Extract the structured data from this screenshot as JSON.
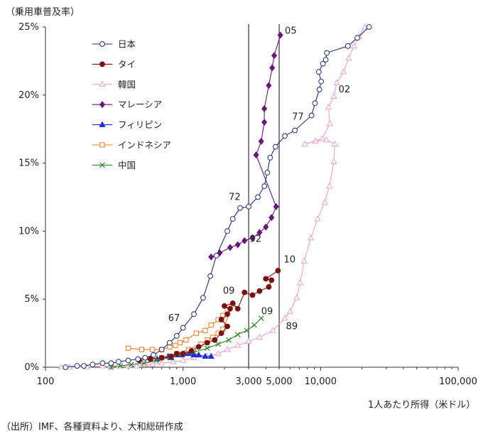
{
  "source_note": "（出所）IMF、各種資料より、大和総研作成",
  "chart_data": {
    "type": "line",
    "title": "",
    "xlabel": "1人あたり所得（米ドル）",
    "ylabel": "（乗用車普及率）",
    "x_scale": "log",
    "xlim": [
      100,
      100000
    ],
    "ylim": [
      0,
      25
    ],
    "x_ticks": [
      {
        "value": 100,
        "label": "100"
      },
      {
        "value": 1000,
        "label": "1,000"
      },
      {
        "value": 3000,
        "label": "3,000"
      },
      {
        "value": 5000,
        "label": "5,000"
      },
      {
        "value": 10000,
        "label": "10,000"
      },
      {
        "value": 100000,
        "label": "100,000"
      }
    ],
    "y_ticks": [
      {
        "value": 0,
        "label": "0%"
      },
      {
        "value": 5,
        "label": "5%"
      },
      {
        "value": 10,
        "label": "10%"
      },
      {
        "value": 15,
        "label": "15%"
      },
      {
        "value": 20,
        "label": "20%"
      },
      {
        "value": 25,
        "label": "25%"
      }
    ],
    "reference_lines_x": [
      3000,
      5000
    ],
    "legend_position": "top-left",
    "series": [
      {
        "name": "日本",
        "color": "#1f2d7a",
        "marker": "circle-open",
        "points": [
          [
            140,
            0
          ],
          [
            170,
            0.1
          ],
          [
            190,
            0.1
          ],
          [
            220,
            0.2
          ],
          [
            260,
            0.3
          ],
          [
            300,
            0.3
          ],
          [
            340,
            0.4
          ],
          [
            400,
            0.5
          ],
          [
            470,
            0.6
          ],
          [
            530,
            0.7
          ],
          [
            610,
            0.9
          ],
          [
            700,
            1.3
          ],
          [
            800,
            1.8
          ],
          [
            900,
            2.3
          ],
          [
            1000,
            2.9
          ],
          [
            1200,
            3.9
          ],
          [
            1400,
            5.1
          ],
          [
            1580,
            6.7
          ],
          [
            1750,
            8.2
          ],
          [
            2100,
            10
          ],
          [
            2300,
            10.9
          ],
          [
            2600,
            11.7
          ],
          [
            3000,
            11.8
          ],
          [
            3500,
            12.5
          ],
          [
            3900,
            13.3
          ],
          [
            4100,
            14.3
          ],
          [
            4300,
            15.4
          ],
          [
            4700,
            16.2
          ],
          [
            5500,
            17
          ],
          [
            6500,
            17.4
          ],
          [
            8600,
            18.5
          ],
          [
            9100,
            19.4
          ],
          [
            9800,
            20.4
          ],
          [
            10100,
            21
          ],
          [
            9700,
            21.7
          ],
          [
            10400,
            22.3
          ],
          [
            10900,
            22.6
          ],
          [
            11100,
            23.1
          ],
          [
            15800,
            23.6
          ],
          [
            18500,
            24.2
          ],
          [
            22500,
            25
          ]
        ]
      },
      {
        "name": "タイ",
        "color": "#7a1010",
        "marker": "circle-filled",
        "points": [
          [
            480,
            0.5
          ],
          [
            580,
            0.6
          ],
          [
            700,
            0.7
          ],
          [
            820,
            0.8
          ],
          [
            900,
            1
          ],
          [
            1000,
            1
          ],
          [
            1150,
            1.2
          ],
          [
            1300,
            1.5
          ],
          [
            1500,
            1.8
          ],
          [
            1700,
            2
          ],
          [
            1900,
            2.5
          ],
          [
            2100,
            3
          ],
          [
            1900,
            3.5
          ],
          [
            2100,
            3.9
          ],
          [
            2200,
            4.3
          ],
          [
            2000,
            4.5
          ],
          [
            2300,
            4.7
          ],
          [
            2500,
            4.3
          ],
          [
            2800,
            5.5
          ],
          [
            3200,
            5.3
          ],
          [
            3600,
            5.6
          ],
          [
            4200,
            5.9
          ],
          [
            4400,
            6.4
          ],
          [
            4000,
            6.5
          ],
          [
            4900,
            7.1
          ]
        ]
      },
      {
        "name": "韓国",
        "color": "#f2a0c8",
        "marker": "triangle-open",
        "points": [
          [
            130,
            0
          ],
          [
            150,
            0
          ],
          [
            200,
            0
          ],
          [
            260,
            0.1
          ],
          [
            300,
            0.1
          ],
          [
            340,
            0.1
          ],
          [
            400,
            0.1
          ],
          [
            460,
            0.1
          ],
          [
            530,
            0.2
          ],
          [
            600,
            0.2
          ],
          [
            700,
            0.3
          ],
          [
            850,
            0.4
          ],
          [
            1000,
            0.5
          ],
          [
            1200,
            0.7
          ],
          [
            1500,
            0.8
          ],
          [
            1800,
            1
          ],
          [
            2100,
            1.3
          ],
          [
            2500,
            1.6
          ],
          [
            3000,
            1.9
          ],
          [
            3600,
            2.2
          ],
          [
            4500,
            2.7
          ],
          [
            5500,
            3.6
          ],
          [
            6000,
            4.1
          ],
          [
            6700,
            5.1
          ],
          [
            7100,
            6.2
          ],
          [
            7600,
            7.8
          ],
          [
            8500,
            9.5
          ],
          [
            9500,
            10.9
          ],
          [
            10700,
            12.1
          ],
          [
            11600,
            13.3
          ],
          [
            12500,
            15.1
          ],
          [
            12700,
            16.4
          ],
          [
            11000,
            16.7
          ],
          [
            9200,
            16.6
          ],
          [
            7700,
            16.4
          ],
          [
            10300,
            16.8
          ],
          [
            11700,
            17.9
          ],
          [
            11400,
            19.1
          ],
          [
            12500,
            19.9
          ],
          [
            13100,
            20.9
          ],
          [
            14700,
            21.7
          ],
          [
            16000,
            22.7
          ],
          [
            17500,
            23.6
          ],
          [
            19000,
            24.3
          ],
          [
            21000,
            25
          ]
        ]
      },
      {
        "name": "マレーシア",
        "color": "#6b1480",
        "marker": "diamond-filled",
        "points": [
          [
            1600,
            8.1
          ],
          [
            1850,
            8.4
          ],
          [
            2200,
            8.8
          ],
          [
            2500,
            9.0
          ],
          [
            2800,
            9.3
          ],
          [
            3200,
            9.5
          ],
          [
            3600,
            9.9
          ],
          [
            4000,
            10.3
          ],
          [
            4400,
            11.0
          ],
          [
            4750,
            11.8
          ],
          [
            3400,
            15.6
          ],
          [
            3700,
            16.6
          ],
          [
            3900,
            18.0
          ],
          [
            3900,
            19.0
          ],
          [
            4200,
            20.7
          ],
          [
            4450,
            22.0
          ],
          [
            4600,
            22.9
          ],
          [
            5100,
            24.4
          ]
        ]
      },
      {
        "name": "フィリピン",
        "color": "#1a2fe0",
        "marker": "triangle-filled",
        "points": [
          [
            580,
            0.6
          ],
          [
            650,
            0.6
          ],
          [
            780,
            0.8
          ],
          [
            820,
            0.7
          ],
          [
            900,
            0.9
          ],
          [
            980,
            0.9
          ],
          [
            1020,
            1
          ],
          [
            1100,
            1
          ],
          [
            1200,
            0.9
          ],
          [
            1300,
            0.9
          ],
          [
            1450,
            0.8
          ],
          [
            1600,
            0.8
          ]
        ]
      },
      {
        "name": "インドネシア",
        "color": "#f07820",
        "marker": "square-open",
        "points": [
          [
            400,
            1.4
          ],
          [
            500,
            1.3
          ],
          [
            600,
            1.3
          ],
          [
            700,
            1.3
          ],
          [
            800,
            1.5
          ],
          [
            880,
            1.6
          ],
          [
            950,
            1.8
          ],
          [
            1050,
            2
          ],
          [
            1250,
            2.5
          ],
          [
            1450,
            2.7
          ],
          [
            1600,
            3.1
          ],
          [
            1800,
            3.5
          ],
          [
            1950,
            3.8
          ],
          [
            2100,
            4.2
          ],
          [
            2300,
            4.6
          ],
          [
            1950,
            2.8
          ],
          [
            1800,
            2.5
          ],
          [
            1650,
            2.2
          ],
          [
            1500,
            2
          ],
          [
            1350,
            1.7
          ],
          [
            1100,
            1.3
          ],
          [
            900,
            1
          ],
          [
            700,
            0.7
          ],
          [
            550,
            0.5
          ]
        ]
      },
      {
        "name": "中国",
        "color": "#2a8a2a",
        "marker": "cross",
        "points": [
          [
            300,
            0
          ],
          [
            350,
            0.1
          ],
          [
            420,
            0.2
          ],
          [
            520,
            0.3
          ],
          [
            640,
            0.5
          ],
          [
            800,
            0.7
          ],
          [
            980,
            0.9
          ],
          [
            1200,
            1.1
          ],
          [
            1500,
            1.4
          ],
          [
            1800,
            1.7
          ],
          [
            2150,
            2.0
          ],
          [
            2500,
            2.4
          ],
          [
            2900,
            2.7
          ],
          [
            3300,
            3.1
          ],
          [
            3700,
            3.6
          ]
        ]
      }
    ],
    "annotations": [
      {
        "text": "05",
        "x": 5500,
        "y": 24.5
      },
      {
        "text": "02",
        "x": 13500,
        "y": 20.2
      },
      {
        "text": "77",
        "x": 6200,
        "y": 18.2
      },
      {
        "text": "72",
        "x": 2150,
        "y": 12.3
      },
      {
        "text": "92",
        "x": 3050,
        "y": 9.2
      },
      {
        "text": "10",
        "x": 5400,
        "y": 7.7
      },
      {
        "text": "09",
        "x": 1950,
        "y": 5.4
      },
      {
        "text": "09",
        "x": 3700,
        "y": 3.9
      },
      {
        "text": "67",
        "x": 780,
        "y": 3.4
      },
      {
        "text": "89",
        "x": 5600,
        "y": 2.8
      }
    ]
  }
}
